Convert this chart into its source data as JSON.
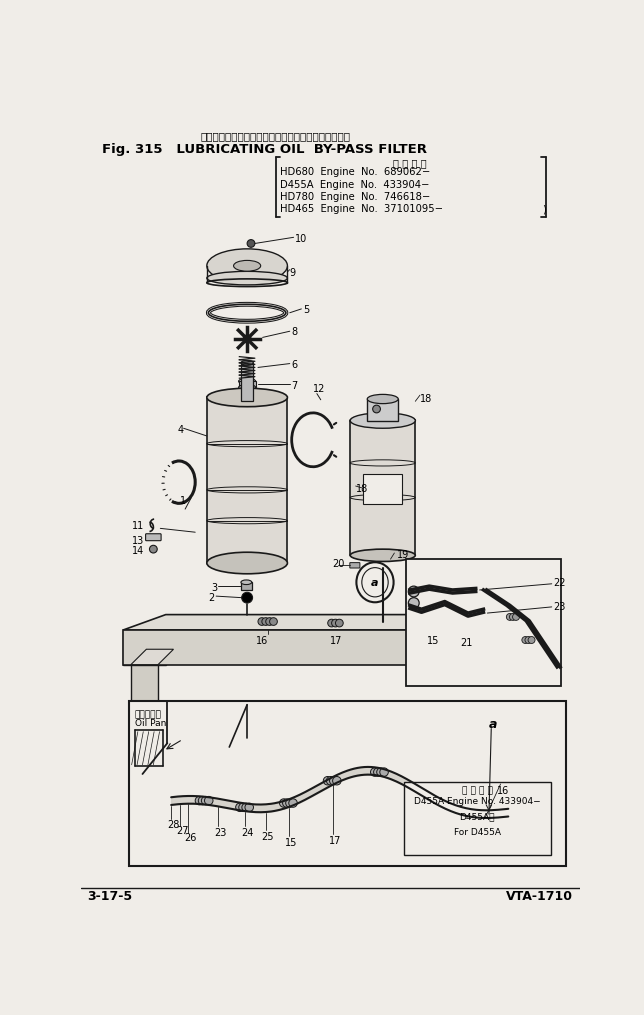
{
  "bg_color": "#f0ede8",
  "title_jp": "ルーブリケーティング　オイル　バイパス　フィルタ",
  "title_en": "Fig. 315   LUBRICATING OIL  BY-PASS FILTER",
  "applicability_header": "適 用 号 機",
  "applicability_lines": [
    "HD680  Engine  No.  689062−",
    "D455A  Engine  No.  433904−",
    "HD780  Engine  No.  746618−",
    "HD465  Engine  No.  37101095−  )"
  ],
  "bottom_left": "3-17-5",
  "bottom_right": "VTA-1710",
  "inset_label_jp": "適 用 号 機",
  "inset_lines": [
    "D455A Engine No. 433904−",
    "D455A用",
    "For D455A"
  ],
  "oil_pan_jp": "オイルパン",
  "oil_pan_en": "Oil Pan"
}
